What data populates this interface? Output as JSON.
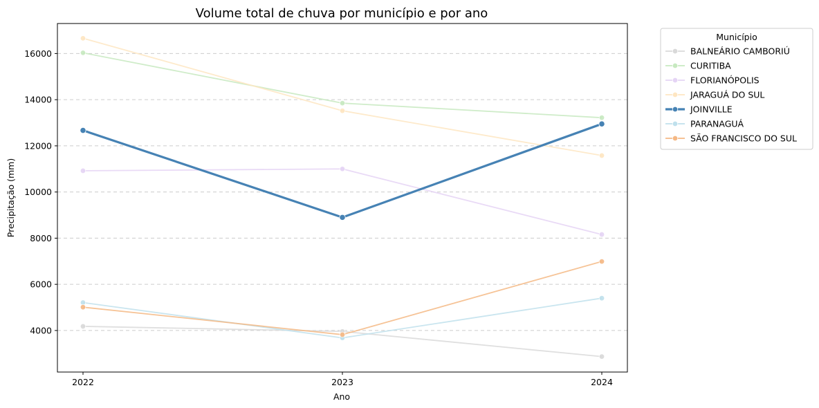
{
  "chart_data": {
    "type": "line",
    "title": "Volume total de chuva por município e por ano",
    "xlabel": "Ano",
    "ylabel": "Precipitação (mm)",
    "x": [
      "2022",
      "2023",
      "2024"
    ],
    "ylim": [
      2200,
      17300
    ],
    "yticks": [
      "4000",
      "6000",
      "8000",
      "10000",
      "12000",
      "14000",
      "16000"
    ],
    "grid": "y-dashed",
    "legend": {
      "title": "Município",
      "placement": "outside-right"
    },
    "series": [
      {
        "name": "BALNEÁRIO CAMBORIÚ",
        "values": [
          4180,
          3960,
          2870
        ],
        "color": "#d9d9d9",
        "highlight": false
      },
      {
        "name": "CURITIBA",
        "values": [
          16030,
          13850,
          13220
        ],
        "color": "#c7e9c0",
        "highlight": false
      },
      {
        "name": "FLORIANÓPOLIS",
        "values": [
          10920,
          11000,
          8160
        ],
        "color": "#e5d4f5",
        "highlight": false
      },
      {
        "name": "JARAGUÁ DO SUL",
        "values": [
          16660,
          13520,
          11580
        ],
        "color": "#fee6c2",
        "highlight": false
      },
      {
        "name": "JOINVILLE",
        "values": [
          12670,
          8900,
          12950
        ],
        "color": "#4682b4",
        "highlight": true
      },
      {
        "name": "PARANAGUÁ",
        "values": [
          5210,
          3680,
          5400
        ],
        "color": "#bfe0ec",
        "highlight": false
      },
      {
        "name": "SÃO FRANCISCO DO SUL",
        "values": [
          5010,
          3820,
          6990
        ],
        "color": "#f5b884",
        "highlight": false
      }
    ]
  }
}
